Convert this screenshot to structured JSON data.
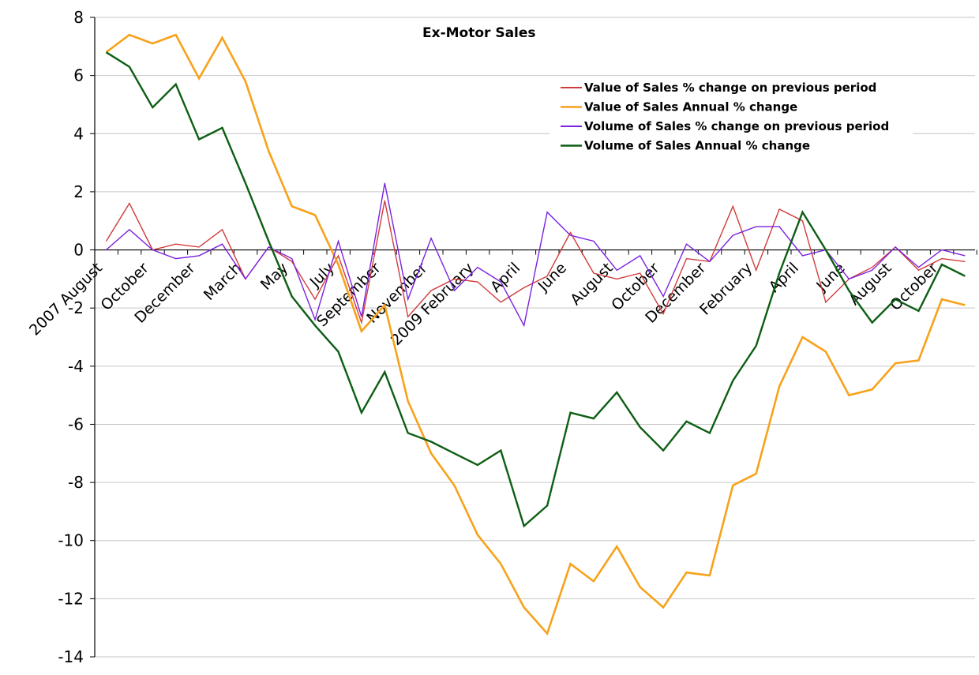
{
  "chart_data": {
    "type": "line",
    "title": "Ex-Motor Sales",
    "xlabel": "",
    "ylabel": "",
    "ylim": [
      -14,
      8
    ],
    "yticks": [
      8,
      6,
      4,
      2,
      0,
      -2,
      -4,
      -6,
      -8,
      -10,
      -12,
      -14
    ],
    "grid": true,
    "legend_position": "top-right",
    "x_labels": [
      {
        "index": 0,
        "label": "2007 August"
      },
      {
        "index": 2,
        "label": "October"
      },
      {
        "index": 4,
        "label": "December"
      },
      {
        "index": 6,
        "label": "March"
      },
      {
        "index": 8,
        "label": "May"
      },
      {
        "index": 10,
        "label": "July"
      },
      {
        "index": 12,
        "label": "September"
      },
      {
        "index": 14,
        "label": "November"
      },
      {
        "index": 16,
        "label": "2009 February"
      },
      {
        "index": 18,
        "label": "April"
      },
      {
        "index": 20,
        "label": "June"
      },
      {
        "index": 22,
        "label": "August"
      },
      {
        "index": 24,
        "label": "October"
      },
      {
        "index": 26,
        "label": "December"
      },
      {
        "index": 28,
        "label": "February"
      },
      {
        "index": 30,
        "label": "April"
      },
      {
        "index": 32,
        "label": "June"
      },
      {
        "index": 34,
        "label": "August"
      },
      {
        "index": 36,
        "label": "October"
      }
    ],
    "series": [
      {
        "name": "Value of Sales  % change  on previous  period",
        "color": "#d03c3c",
        "width": 1.4,
        "values": [
          0.3,
          1.6,
          0.0,
          0.2,
          0.1,
          0.7,
          -1.0,
          0.1,
          -0.4,
          -1.7,
          -0.2,
          -2.5,
          1.7,
          -2.3,
          -1.4,
          -1.0,
          -1.1,
          -1.8,
          -1.3,
          -0.9,
          0.6,
          -0.8,
          -1.0,
          -0.8,
          -2.2,
          -0.3,
          -0.4,
          1.5,
          -0.7,
          1.4,
          1.0,
          -1.8,
          -1.0,
          -0.6,
          0.1,
          -0.7,
          -0.3,
          -0.4
        ]
      },
      {
        "name": "Value of Sales  Annual %  change",
        "color": "#f7a21b",
        "width": 2.6,
        "values": [
          6.8,
          7.4,
          7.1,
          7.4,
          5.9,
          7.3,
          5.8,
          3.4,
          1.5,
          1.2,
          -0.5,
          -2.8,
          -1.9,
          -5.2,
          -7.0,
          -8.1,
          -9.8,
          -10.8,
          -12.3,
          -13.2,
          -10.8,
          -11.4,
          -10.2,
          -11.6,
          -12.3,
          -11.1,
          -11.2,
          -8.1,
          -7.7,
          -4.7,
          -3.0,
          -3.5,
          -5.0,
          -4.8,
          -3.9,
          -3.8,
          -1.7,
          -1.9
        ]
      },
      {
        "name": "Volume of Sales  % change  on previous  period",
        "color": "#7b22e0",
        "width": 1.4,
        "values": [
          0.0,
          0.7,
          0.0,
          -0.3,
          -0.2,
          0.2,
          -1.0,
          0.1,
          -0.3,
          -2.4,
          0.3,
          -2.3,
          2.3,
          -1.7,
          0.4,
          -1.4,
          -0.6,
          -1.1,
          -2.6,
          1.3,
          0.5,
          0.3,
          -0.7,
          -0.2,
          -1.6,
          0.2,
          -0.4,
          0.5,
          0.8,
          0.8,
          -0.2,
          0.0,
          -1.0,
          -0.7,
          0.1,
          -0.6,
          0.0,
          -0.2
        ]
      },
      {
        "name": "Volume of Sales  Annual %  change",
        "color": "#0e5e14",
        "width": 2.4,
        "values": [
          6.8,
          6.3,
          4.9,
          5.7,
          3.8,
          4.2,
          2.3,
          0.3,
          -1.6,
          -2.6,
          -3.5,
          -5.6,
          -4.2,
          -6.3,
          -6.6,
          -7.0,
          -7.4,
          -6.9,
          -9.5,
          -8.8,
          -5.6,
          -5.8,
          -4.9,
          -6.1,
          -6.9,
          -5.9,
          -6.3,
          -4.5,
          -3.3,
          -0.8,
          1.3,
          0.0,
          -1.4,
          -2.5,
          -1.7,
          -2.1,
          -0.5,
          -0.9
        ]
      }
    ]
  }
}
